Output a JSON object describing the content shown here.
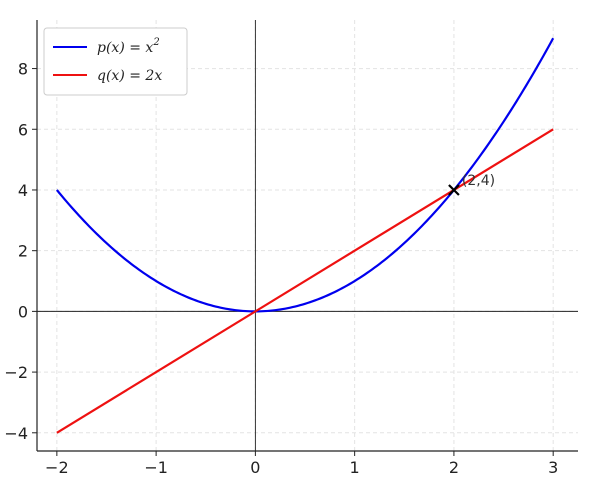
{
  "chart_data": {
    "type": "line",
    "title": "",
    "xlabel": "",
    "ylabel": "",
    "xlim": [
      -2.2,
      3.25
    ],
    "ylim": [
      -4.6,
      9.6
    ],
    "xticks": [
      -2,
      -1,
      0,
      1,
      2,
      3
    ],
    "yticks": [
      -4,
      -2,
      0,
      2,
      4,
      6,
      8
    ],
    "xtick_labels": [
      "−2",
      "−1",
      "0",
      "1",
      "2",
      "3"
    ],
    "ytick_labels": [
      "−4",
      "−2",
      "0",
      "2",
      "4",
      "6",
      "8"
    ],
    "grid": true,
    "legend_position": "top-left",
    "series": [
      {
        "name": "p(x) = x²",
        "color": "#0000ee",
        "x": [
          -2,
          -1.75,
          -1.5,
          -1.25,
          -1,
          -0.75,
          -0.5,
          -0.25,
          0,
          0.25,
          0.5,
          0.75,
          1,
          1.25,
          1.5,
          1.75,
          2,
          2.25,
          2.5,
          2.75,
          3
        ],
        "y": [
          4,
          3.0625,
          2.25,
          1.5625,
          1,
          0.5625,
          0.25,
          0.0625,
          0,
          0.0625,
          0.25,
          0.5625,
          1,
          1.5625,
          2.25,
          3.0625,
          4,
          5.0625,
          6.25,
          7.5625,
          9
        ]
      },
      {
        "name": "q(x) = 2x",
        "color": "#ee1111",
        "x": [
          -2,
          3
        ],
        "y": [
          -4,
          6
        ]
      }
    ],
    "annotations": [
      {
        "x": 2,
        "y": 4,
        "marker": "x",
        "text": "(2,4)"
      }
    ]
  },
  "legend": {
    "p_prefix": "p(x) = x",
    "p_sup": "2",
    "q_text": "q(x) = 2x"
  }
}
